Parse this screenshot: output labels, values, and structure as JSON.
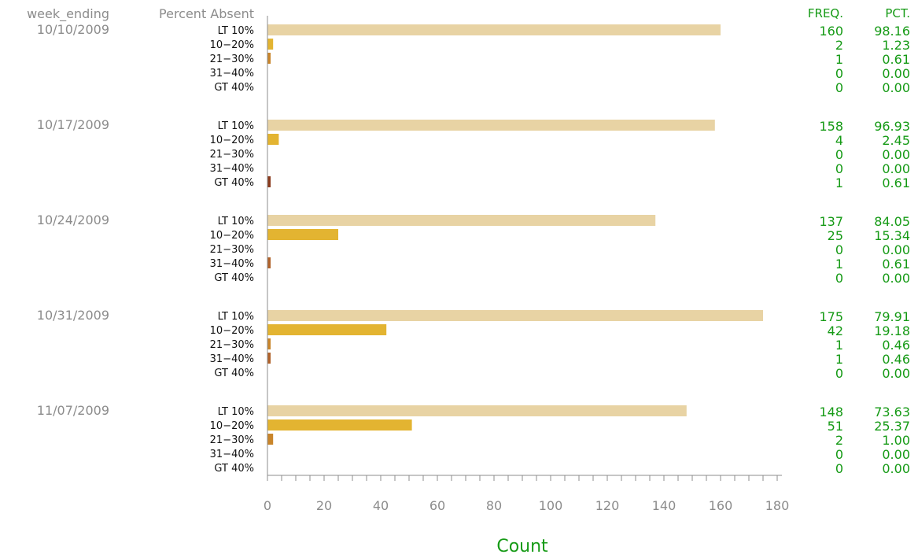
{
  "chart_data": {
    "type": "bar",
    "orientation": "horizontal",
    "group_header": "week_ending",
    "category_header": "Percent Absent",
    "freq_header": "FREQ.",
    "pct_header": "PCT.",
    "xlabel": "Count",
    "xlim": [
      0,
      180
    ],
    "xticks": [
      "0",
      "20",
      "40",
      "60",
      "80",
      "100",
      "120",
      "140",
      "160",
      "180"
    ],
    "categories": [
      "LT 10%",
      "10−20%",
      "21−30%",
      "31−40%",
      "GT 40%"
    ],
    "colors": [
      "#e8d3a4",
      "#e3b431",
      "#c9852a",
      "#b0622a",
      "#8a3a1c"
    ],
    "groups": [
      {
        "week": "10/10/2009",
        "freq": [
          "160",
          "2",
          "1",
          "0",
          "0"
        ],
        "pct": [
          "98.16",
          "1.23",
          "0.61",
          "0.00",
          "0.00"
        ]
      },
      {
        "week": "10/17/2009",
        "freq": [
          "158",
          "4",
          "0",
          "0",
          "1"
        ],
        "pct": [
          "96.93",
          "2.45",
          "0.00",
          "0.00",
          "0.61"
        ]
      },
      {
        "week": "10/24/2009",
        "freq": [
          "137",
          "25",
          "0",
          "1",
          "0"
        ],
        "pct": [
          "84.05",
          "15.34",
          "0.00",
          "0.61",
          "0.00"
        ]
      },
      {
        "week": "10/31/2009",
        "freq": [
          "175",
          "42",
          "1",
          "1",
          "0"
        ],
        "pct": [
          "79.91",
          "19.18",
          "0.46",
          "0.46",
          "0.00"
        ]
      },
      {
        "week": "11/07/2009",
        "freq": [
          "148",
          "51",
          "2",
          "0",
          "0"
        ],
        "pct": [
          "73.63",
          "25.37",
          "1.00",
          "0.00",
          "0.00"
        ]
      }
    ]
  }
}
